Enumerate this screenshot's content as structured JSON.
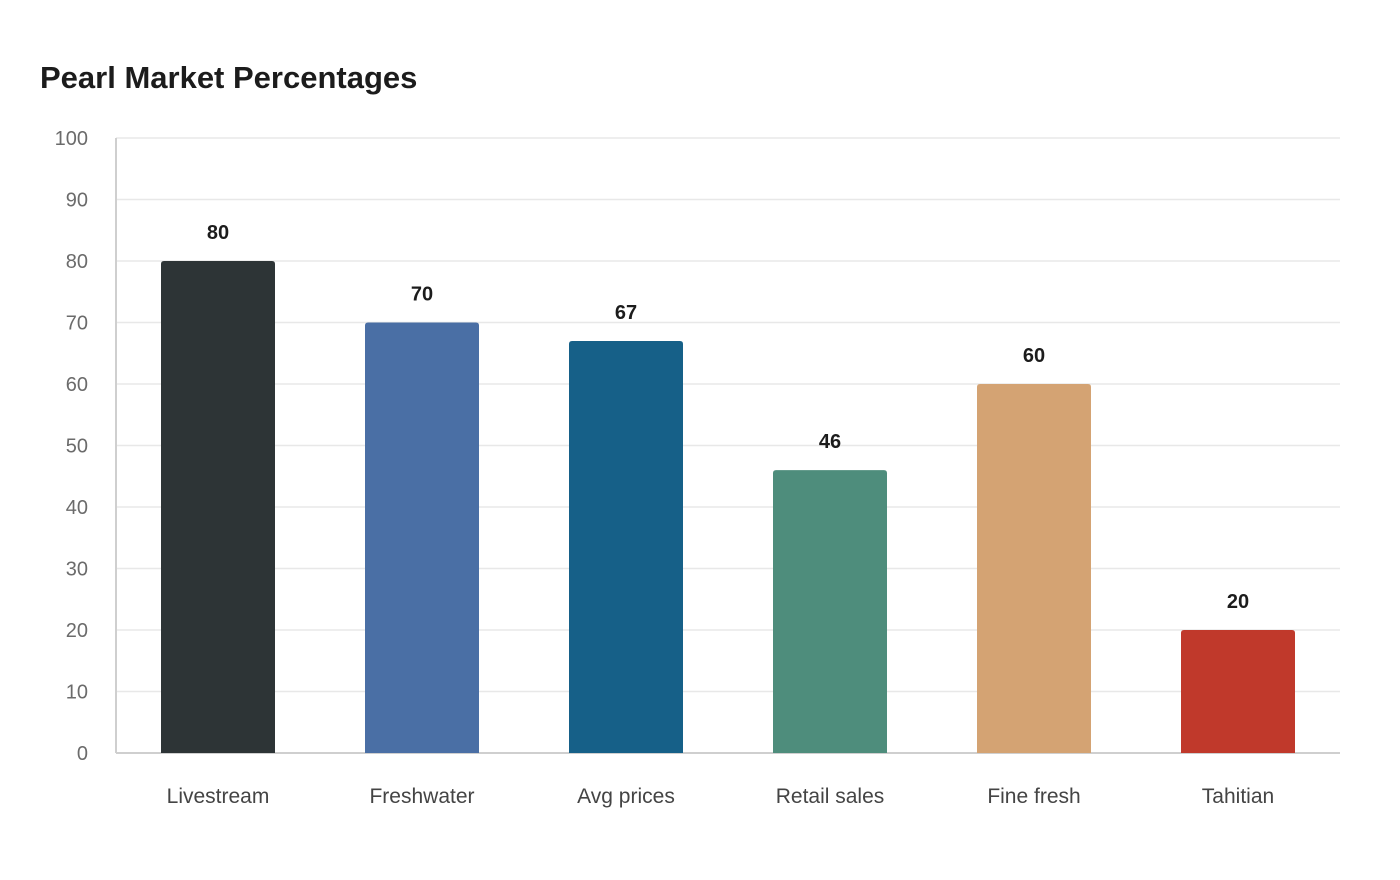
{
  "chart_data": {
    "type": "bar",
    "title": "Pearl Market Percentages",
    "xlabel": "",
    "ylabel": "",
    "categories": [
      "Livestream",
      "Freshwater",
      "Avg prices",
      "Retail sales",
      "Fine fresh",
      "Tahitian"
    ],
    "values": [
      80,
      70,
      67,
      46,
      60,
      20
    ],
    "colors": [
      "#2d3436",
      "#4a6fa5",
      "#166088",
      "#4e8d7c",
      "#d4a373",
      "#c0392b"
    ],
    "ylim": [
      0,
      100
    ],
    "yticks": [
      0,
      10,
      20,
      30,
      40,
      50,
      60,
      70,
      80,
      90,
      100
    ],
    "grid": true,
    "data_labels": true,
    "legend": "none"
  }
}
